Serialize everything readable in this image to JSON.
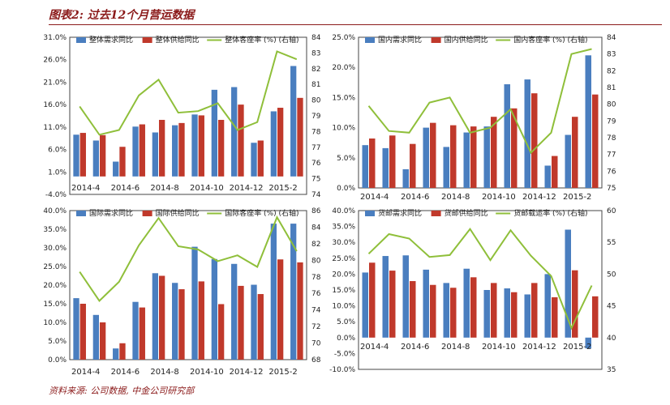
{
  "header": {
    "title": "图表2: 过去12个月营运数据"
  },
  "footer": {
    "source": "资料来源: 公司数据, 中金公司研究部"
  },
  "colors": {
    "demand": "#4a7ebf",
    "supply": "#c0392b",
    "load": "#8fbf3a",
    "title": "#8b1a1a"
  },
  "chart_data": [
    {
      "type": "bar",
      "x": [
        "2014-4",
        "2014-5",
        "2014-6",
        "2014-7",
        "2014-8",
        "2014-9",
        "2014-10",
        "2014-11",
        "2014-12",
        "2015-1",
        "2015-2",
        "2015-3"
      ],
      "x_tick_labels": [
        "2014-4",
        "2014-6",
        "2014-8",
        "2014-10",
        "2014-12",
        "2015-2"
      ],
      "y_left_ticks": [
        "31.0%",
        "26.0%",
        "21.0%",
        "16.0%",
        "11.0%",
        "6.0%",
        "1.0%",
        "-4.0%"
      ],
      "y_right_ticks": [
        "84",
        "83",
        "82",
        "81",
        "80",
        "79",
        "78",
        "77",
        "76",
        "75",
        "74"
      ],
      "ylim_left": [
        -4,
        31
      ],
      "ylim_right": [
        74,
        84
      ],
      "series": [
        {
          "name": "整体需求同比",
          "kind": "bar",
          "axis": "left",
          "values": [
            9.3,
            8.0,
            3.3,
            11.1,
            9.8,
            11.4,
            13.8,
            19.3,
            19.9,
            7.5,
            14.5,
            24.6
          ]
        },
        {
          "name": "整体供给同比",
          "kind": "bar",
          "axis": "left",
          "values": [
            9.7,
            9.2,
            6.6,
            11.6,
            12.6,
            11.9,
            13.6,
            12.6,
            16.0,
            8.0,
            15.3,
            17.5
          ]
        },
        {
          "name": "整体客座率 (%) (右轴)",
          "kind": "line",
          "axis": "right",
          "values": [
            79.6,
            77.8,
            78.1,
            80.3,
            81.3,
            79.2,
            79.3,
            79.8,
            78.1,
            78.6,
            83.1,
            82.6
          ]
        }
      ],
      "legend": "top"
    },
    {
      "type": "bar",
      "x": [
        "2014-4",
        "2014-5",
        "2014-6",
        "2014-7",
        "2014-8",
        "2014-9",
        "2014-10",
        "2014-11",
        "2014-12",
        "2015-1",
        "2015-2",
        "2015-3"
      ],
      "x_tick_labels": [
        "2014-4",
        "2014-6",
        "2014-8",
        "2014-10",
        "2014-12",
        "2015-2"
      ],
      "y_left_ticks": [
        "25.0%",
        "20.0%",
        "15.0%",
        "10.0%",
        "5.0%",
        "0.0%"
      ],
      "y_right_ticks": [
        "84",
        "83",
        "82",
        "81",
        "80",
        "79",
        "78",
        "77",
        "76",
        "75"
      ],
      "ylim_left": [
        0,
        25
      ],
      "ylim_right": [
        75,
        84
      ],
      "series": [
        {
          "name": "国内需求同比",
          "kind": "bar",
          "axis": "left",
          "values": [
            7.1,
            6.6,
            3.1,
            10.0,
            6.8,
            9.2,
            10.2,
            17.2,
            18.0,
            3.7,
            8.8,
            22.0
          ]
        },
        {
          "name": "国内供给同比",
          "kind": "bar",
          "axis": "left",
          "values": [
            8.2,
            8.7,
            7.3,
            10.8,
            10.4,
            10.2,
            11.8,
            13.2,
            15.7,
            5.3,
            11.8,
            15.5
          ]
        },
        {
          "name": "国内客座率 (%) (右轴)",
          "kind": "line",
          "axis": "right",
          "values": [
            79.9,
            78.4,
            78.3,
            80.1,
            80.4,
            78.3,
            78.6,
            79.7,
            77.1,
            78.3,
            83.0,
            83.3
          ]
        }
      ],
      "legend": "top"
    },
    {
      "type": "bar",
      "x": [
        "2014-4",
        "2014-5",
        "2014-6",
        "2014-7",
        "2014-8",
        "2014-9",
        "2014-10",
        "2014-11",
        "2014-12",
        "2015-1",
        "2015-2",
        "2015-3"
      ],
      "x_tick_labels": [
        "2014-4",
        "2014-6",
        "2014-8",
        "2014-10",
        "2014-12",
        "2015-2"
      ],
      "y_left_ticks": [
        "40.0%",
        "35.0%",
        "30.0%",
        "25.0%",
        "20.0%",
        "15.0%",
        "10.0%",
        "5.0%",
        "0.0%"
      ],
      "y_right_ticks": [
        "86",
        "84",
        "82",
        "80",
        "78",
        "76",
        "74",
        "72",
        "70",
        "68"
      ],
      "ylim_left": [
        0,
        40
      ],
      "ylim_right": [
        68,
        86
      ],
      "series": [
        {
          "name": "国际需求同比",
          "kind": "bar",
          "axis": "left",
          "values": [
            16.5,
            12.0,
            3.0,
            15.5,
            23.2,
            20.6,
            30.3,
            27.0,
            25.7,
            20.1,
            36.5,
            36.5
          ]
        },
        {
          "name": "国际供给同比",
          "kind": "bar",
          "axis": "left",
          "values": [
            15.0,
            10.0,
            4.4,
            14.0,
            22.5,
            18.9,
            21.0,
            14.9,
            19.8,
            17.6,
            26.9,
            26.1
          ]
        },
        {
          "name": "国际客座率 (%) (右轴)",
          "kind": "line",
          "axis": "right",
          "values": [
            78.6,
            75.1,
            77.4,
            81.8,
            85.1,
            81.7,
            81.3,
            79.9,
            80.6,
            79.2,
            85.2,
            81.1
          ]
        }
      ],
      "legend": "top"
    },
    {
      "type": "bar",
      "x": [
        "2014-4",
        "2014-5",
        "2014-6",
        "2014-7",
        "2014-8",
        "2014-9",
        "2014-10",
        "2014-11",
        "2014-12",
        "2015-1",
        "2015-2",
        "2015-3"
      ],
      "x_tick_labels": [
        "2014-4",
        "2014-6",
        "2014-8",
        "2014-10",
        "2014-12",
        "2015-2"
      ],
      "y_left_ticks": [
        "40.0%",
        "35.0%",
        "30.0%",
        "25.0%",
        "20.0%",
        "15.0%",
        "10.0%",
        "5.0%",
        "0.0%",
        "-5.0%",
        "-10.0%"
      ],
      "y_right_ticks": [
        "60",
        "55",
        "50",
        "45",
        "40",
        "35"
      ],
      "ylim_left": [
        -10,
        40
      ],
      "ylim_right": [
        35,
        60
      ],
      "series": [
        {
          "name": "货邮需求同比",
          "kind": "bar",
          "axis": "left",
          "values": [
            20.5,
            25.7,
            25.9,
            21.4,
            17.2,
            21.7,
            15.0,
            15.5,
            13.6,
            20.0,
            34.0,
            -3.4
          ]
        },
        {
          "name": "货邮供给同比",
          "kind": "bar",
          "axis": "left",
          "values": [
            23.6,
            21.1,
            17.8,
            16.6,
            15.7,
            19.0,
            17.2,
            14.3,
            17.2,
            12.7,
            21.2,
            13.0
          ]
        },
        {
          "name": "货邮载运率 (%) (右轴)",
          "kind": "line",
          "axis": "right",
          "values": [
            53.2,
            56.3,
            55.6,
            52.7,
            53.0,
            57.1,
            52.2,
            56.9,
            52.9,
            49.7,
            41.5,
            48.2
          ]
        }
      ],
      "legend": "top"
    }
  ]
}
